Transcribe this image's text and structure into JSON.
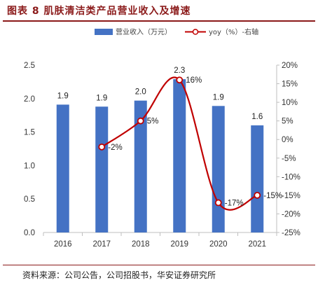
{
  "figure_title": "图表 8 肌肤清洁类产品营业收入及增速",
  "source_note": "资料来源：公司公告，公司招股书，华安证券研究所",
  "chart_data": {
    "type": "bar",
    "categories": [
      "2016",
      "2017",
      "2018",
      "2019",
      "2020",
      "2021"
    ],
    "series": [
      {
        "name": "营业收入（万元）",
        "type": "bar",
        "axis": "left",
        "values": [
          1.9,
          1.9,
          2.0,
          2.3,
          1.9,
          1.6
        ],
        "labels": [
          "1.9",
          "1.9",
          "2.0",
          "2.3",
          "1.9",
          "1.6"
        ],
        "color": "#4472c4"
      },
      {
        "name": "yoy（%）-右轴",
        "type": "line",
        "axis": "right",
        "values": [
          null,
          -2,
          5,
          16,
          -17,
          -15
        ],
        "labels": [
          "",
          "-2%",
          "5%",
          "16%",
          "-17%",
          "-15%"
        ],
        "color": "#c00000"
      }
    ],
    "bar_actual": [
      1.91,
      1.88,
      1.97,
      2.29,
      1.89,
      1.6
    ],
    "y_left": {
      "ylim": [
        0,
        2.5
      ],
      "ticks": [
        "0.0",
        "0.5",
        "1.0",
        "1.5",
        "2.0",
        "2.5"
      ]
    },
    "y_right": {
      "ylim": [
        -25,
        20
      ],
      "ticks": [
        "-25%",
        "-20%",
        "-15%",
        "-10%",
        "-5%",
        "0%",
        "5%",
        "10%",
        "15%",
        "20%"
      ]
    },
    "legend_position": "top",
    "grid": false
  }
}
